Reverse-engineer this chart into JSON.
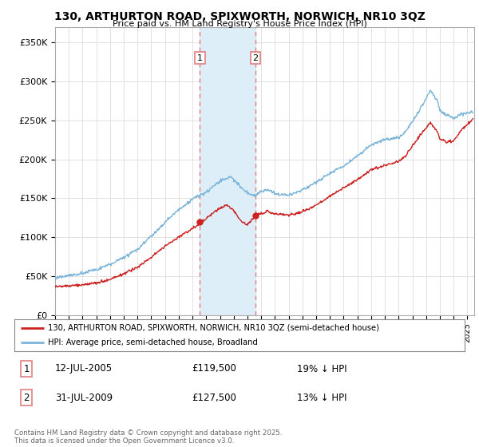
{
  "title": "130, ARTHURTON ROAD, SPIXWORTH, NORWICH, NR10 3QZ",
  "subtitle": "Price paid vs. HM Land Registry's House Price Index (HPI)",
  "ylim": [
    0,
    370000
  ],
  "yticks": [
    0,
    50000,
    100000,
    150000,
    200000,
    250000,
    300000,
    350000
  ],
  "ytick_labels": [
    "£0",
    "£50K",
    "£100K",
    "£150K",
    "£200K",
    "£250K",
    "£300K",
    "£350K"
  ],
  "hpi_color": "#7ab4d8",
  "price_color": "#cc2222",
  "purchase1_x": 2005.53,
  "purchase1_y": 119500,
  "purchase2_x": 2009.58,
  "purchase2_y": 127500,
  "shade_color": "#ddeef8",
  "vline_color": "#e08080",
  "legend_label_red": "130, ARTHURTON ROAD, SPIXWORTH, NORWICH, NR10 3QZ (semi-detached house)",
  "legend_label_blue": "HPI: Average price, semi-detached house, Broadland",
  "footnote": "Contains HM Land Registry data © Crown copyright and database right 2025.\nThis data is licensed under the Open Government Licence v3.0.",
  "table_rows": [
    {
      "label": "1",
      "date": "12-JUL-2005",
      "price": "£119,500",
      "hpi": "19% ↓ HPI"
    },
    {
      "label": "2",
      "date": "31-JUL-2009",
      "price": "£127,500",
      "hpi": "13% ↓ HPI"
    }
  ],
  "xmin": 1995,
  "xmax": 2025.5,
  "background_color": "#ffffff",
  "grid_color": "#dddddd"
}
